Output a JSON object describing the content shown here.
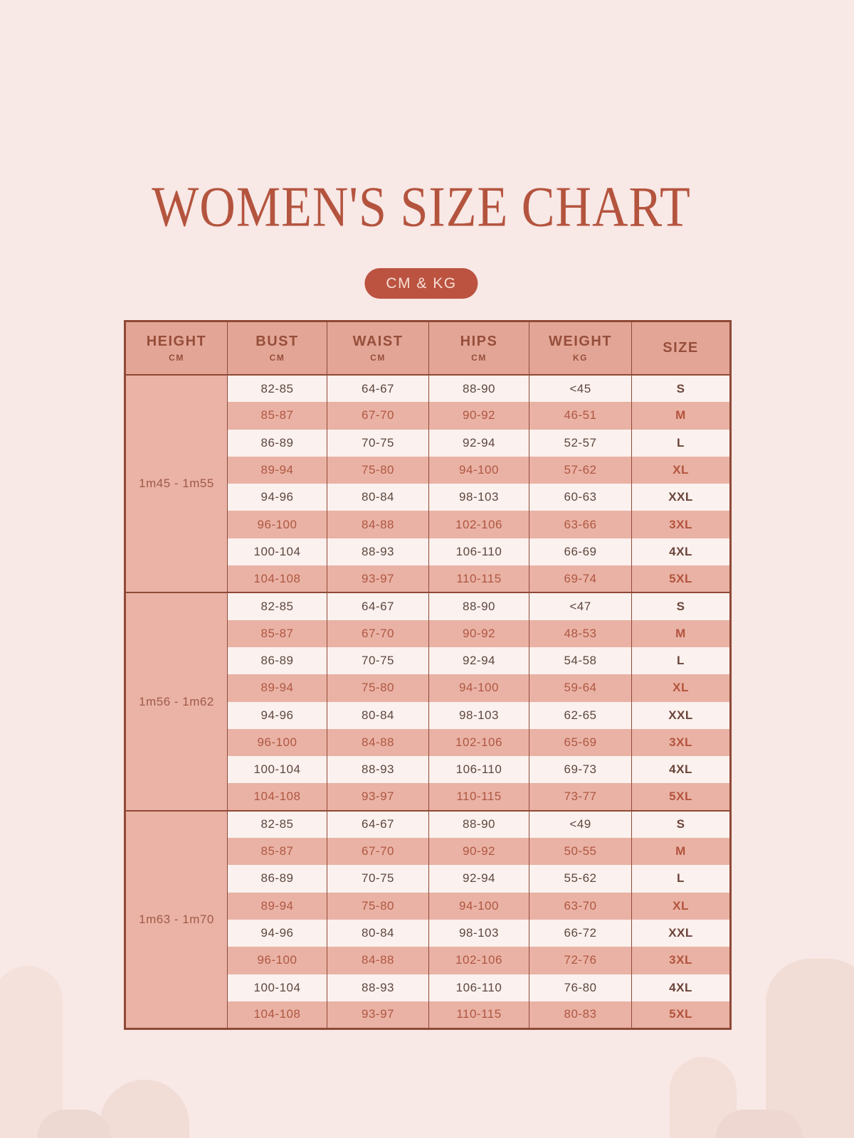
{
  "title": "WOMEN'S SIZE CHART",
  "badge": "CM & KG",
  "table": {
    "columns": [
      {
        "label": "HEIGHT",
        "unit": "CM"
      },
      {
        "label": "BUST",
        "unit": "CM"
      },
      {
        "label": "WAIST",
        "unit": "CM"
      },
      {
        "label": "HIPS",
        "unit": "CM"
      },
      {
        "label": "WEIGHT",
        "unit": "KG"
      },
      {
        "label": "SIZE",
        "unit": ""
      }
    ],
    "groups": [
      {
        "height": "1m45 - 1m55",
        "rows": [
          [
            "82-85",
            "64-67",
            "88-90",
            "<45",
            "S"
          ],
          [
            "85-87",
            "67-70",
            "90-92",
            "46-51",
            "M"
          ],
          [
            "86-89",
            "70-75",
            "92-94",
            "52-57",
            "L"
          ],
          [
            "89-94",
            "75-80",
            "94-100",
            "57-62",
            "XL"
          ],
          [
            "94-96",
            "80-84",
            "98-103",
            "60-63",
            "XXL"
          ],
          [
            "96-100",
            "84-88",
            "102-106",
            "63-66",
            "3XL"
          ],
          [
            "100-104",
            "88-93",
            "106-110",
            "66-69",
            "4XL"
          ],
          [
            "104-108",
            "93-97",
            "110-115",
            "69-74",
            "5XL"
          ]
        ]
      },
      {
        "height": "1m56 - 1m62",
        "rows": [
          [
            "82-85",
            "64-67",
            "88-90",
            "<47",
            "S"
          ],
          [
            "85-87",
            "67-70",
            "90-92",
            "48-53",
            "M"
          ],
          [
            "86-89",
            "70-75",
            "92-94",
            "54-58",
            "L"
          ],
          [
            "89-94",
            "75-80",
            "94-100",
            "59-64",
            "XL"
          ],
          [
            "94-96",
            "80-84",
            "98-103",
            "62-65",
            "XXL"
          ],
          [
            "96-100",
            "84-88",
            "102-106",
            "65-69",
            "3XL"
          ],
          [
            "100-104",
            "88-93",
            "106-110",
            "69-73",
            "4XL"
          ],
          [
            "104-108",
            "93-97",
            "110-115",
            "73-77",
            "5XL"
          ]
        ]
      },
      {
        "height": "1m63 - 1m70",
        "rows": [
          [
            "82-85",
            "64-67",
            "88-90",
            "<49",
            "S"
          ],
          [
            "85-87",
            "67-70",
            "90-92",
            "50-55",
            "M"
          ],
          [
            "86-89",
            "70-75",
            "92-94",
            "55-62",
            "L"
          ],
          [
            "89-94",
            "75-80",
            "94-100",
            "63-70",
            "XL"
          ],
          [
            "94-96",
            "80-84",
            "98-103",
            "66-72",
            "XXL"
          ],
          [
            "96-100",
            "84-88",
            "102-106",
            "72-76",
            "3XL"
          ],
          [
            "100-104",
            "88-93",
            "106-110",
            "76-80",
            "4XL"
          ],
          [
            "104-108",
            "93-97",
            "110-115",
            "80-83",
            "5XL"
          ]
        ]
      }
    ]
  },
  "colors": {
    "background": "#f8e8e6",
    "title_text": "#b4543e",
    "badge_background": "#bb5340",
    "badge_text": "#f7ddd3",
    "header_background": "#e3a696",
    "header_text": "#964e3a",
    "pink_row_background": "#e9b2a5",
    "light_row_background": "#fbf1ee",
    "pink_row_text": "#b05741",
    "light_row_text": "#5d473f",
    "height_column_background": "#eab3a6",
    "height_column_text": "#a05a48",
    "table_border": "#8f4937",
    "decoration_arch": "#f2dcd6"
  }
}
